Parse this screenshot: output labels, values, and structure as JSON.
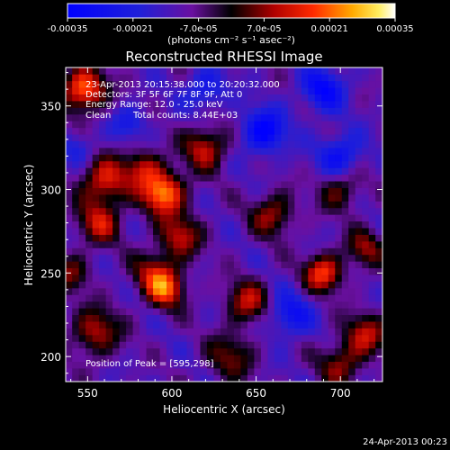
{
  "chart_data": {
    "type": "heatmap",
    "title": "Reconstructed RHESSI Image",
    "xlabel": "Heliocentric X (arcsec)",
    "ylabel": "Heliocentric Y (arcsec)",
    "xlim": [
      537,
      725
    ],
    "ylim": [
      185,
      373
    ],
    "x_ticks": [
      {
        "value": 550,
        "label": "550"
      },
      {
        "value": 600,
        "label": "600"
      },
      {
        "value": 650,
        "label": "650"
      },
      {
        "value": 700,
        "label": "700"
      }
    ],
    "y_ticks": [
      {
        "value": 200,
        "label": "200"
      },
      {
        "value": 250,
        "label": "250"
      },
      {
        "value": 300,
        "label": "300"
      },
      {
        "value": 350,
        "label": "350"
      }
    ],
    "colorbar": {
      "min": -0.00035,
      "max": 0.00035,
      "ticks": [
        {
          "value": -0.00035,
          "label": "-0.00035"
        },
        {
          "value": -0.00021,
          "label": "-0.00021"
        },
        {
          "value": -7e-05,
          "label": "-7.0e-05"
        },
        {
          "value": 7e-05,
          "label": "7.0e-05"
        },
        {
          "value": 0.00021,
          "label": "0.00021"
        },
        {
          "value": 0.00035,
          "label": "0.00035"
        }
      ],
      "unit_label": "(photons cm⁻² s⁻¹ asec⁻²)"
    },
    "annotations": {
      "time_range": "23-Apr-2013 20:15:38.000 to 20:20:32.000",
      "detectors": "Detectors: 3F 5F 6F 7F 8F 9F, Att 0",
      "energy": "Energy Range: 12.0 - 25.0 keV",
      "method": "Clean",
      "counts": "Total counts: 8.44E+03",
      "peak": "Position of Peak = [595,298]"
    },
    "peak": {
      "x": 595,
      "y": 298
    },
    "footer_timestamp": "24-Apr-2013 00:23",
    "hot_spots": [
      {
        "x": 595,
        "y": 298,
        "amp": 1.0,
        "sigma": 9
      },
      {
        "x": 583,
        "y": 313,
        "amp": 0.55,
        "sigma": 8
      },
      {
        "x": 620,
        "y": 325,
        "amp": 0.65,
        "sigma": 9
      },
      {
        "x": 548,
        "y": 360,
        "amp": 0.95,
        "sigma": 9
      },
      {
        "x": 560,
        "y": 305,
        "amp": 0.7,
        "sigma": 10
      },
      {
        "x": 557,
        "y": 280,
        "amp": 0.6,
        "sigma": 9
      },
      {
        "x": 605,
        "y": 272,
        "amp": 0.6,
        "sigma": 9
      },
      {
        "x": 590,
        "y": 250,
        "amp": 0.55,
        "sigma": 9
      },
      {
        "x": 597,
        "y": 240,
        "amp": 0.7,
        "sigma": 8
      },
      {
        "x": 645,
        "y": 233,
        "amp": 0.6,
        "sigma": 9
      },
      {
        "x": 660,
        "y": 285,
        "amp": 0.55,
        "sigma": 9
      },
      {
        "x": 690,
        "y": 250,
        "amp": 0.8,
        "sigma": 8
      },
      {
        "x": 700,
        "y": 300,
        "amp": 0.45,
        "sigma": 9
      },
      {
        "x": 555,
        "y": 215,
        "amp": 0.6,
        "sigma": 10
      },
      {
        "x": 635,
        "y": 200,
        "amp": 0.45,
        "sigma": 10
      },
      {
        "x": 715,
        "y": 213,
        "amp": 0.6,
        "sigma": 9
      },
      {
        "x": 700,
        "y": 195,
        "amp": 0.5,
        "sigma": 9
      },
      {
        "x": 540,
        "y": 250,
        "amp": 0.45,
        "sigma": 8
      },
      {
        "x": 715,
        "y": 265,
        "amp": 0.5,
        "sigma": 8
      }
    ],
    "cold_spots": [
      {
        "x": 655,
        "y": 335,
        "amp": -0.7,
        "sigma": 9
      },
      {
        "x": 690,
        "y": 360,
        "amp": -0.6,
        "sigma": 9
      },
      {
        "x": 700,
        "y": 320,
        "amp": -0.55,
        "sigma": 9
      },
      {
        "x": 670,
        "y": 225,
        "amp": -0.5,
        "sigma": 9
      },
      {
        "x": 620,
        "y": 360,
        "amp": -0.45,
        "sigma": 8
      },
      {
        "x": 575,
        "y": 340,
        "amp": -0.35,
        "sigma": 7
      },
      {
        "x": 545,
        "y": 325,
        "amp": -0.3,
        "sigma": 7
      }
    ]
  }
}
